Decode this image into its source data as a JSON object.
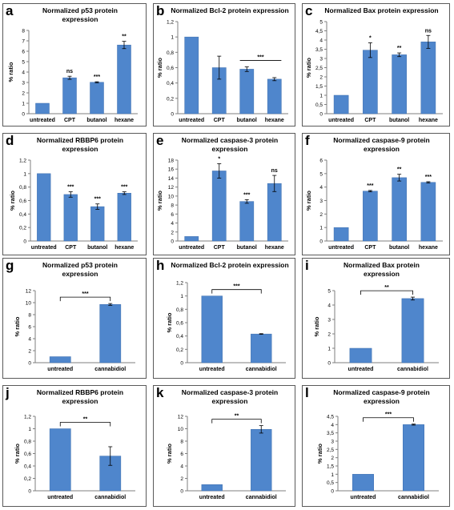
{
  "colors": {
    "bar": "#4f86cc",
    "bar_edge": "#3f6fae",
    "axis": "#7f7f7f",
    "text": "#000000"
  },
  "panels": [
    {
      "label": "a",
      "title": [
        "Normalized p53 protein",
        "expression"
      ]
    },
    {
      "label": "b",
      "title": [
        "Normalized Bcl-2 protein expression"
      ]
    },
    {
      "label": "c",
      "title": [
        "Normalized Bax protein expression"
      ]
    },
    {
      "label": "d",
      "title": [
        "Normalized RBBP6 protein",
        "expression"
      ]
    },
    {
      "label": "e",
      "title": [
        "Normalized caspase-3 protein",
        "expression"
      ]
    },
    {
      "label": "f",
      "title": [
        "Normalized caspase-9 protein",
        "expression"
      ]
    },
    {
      "label": "g",
      "title": [
        "Normalized p53 protein",
        "expression"
      ]
    },
    {
      "label": "h",
      "title": [
        "Normalized Bcl-2 protein expression"
      ]
    },
    {
      "label": "i",
      "title": [
        "Normalized Bax protein",
        "expression"
      ]
    },
    {
      "label": "j",
      "title": [
        "Normalized  RBBP6  protein",
        "expression"
      ]
    },
    {
      "label": "k",
      "title": [
        "Normalized caspase-3 protein",
        "expression"
      ]
    },
    {
      "label": "l",
      "title": [
        "Normalized caspase-9 protein",
        "expression"
      ]
    }
  ],
  "chart_data": [
    {
      "type": "bar",
      "ylabel": "% ratio",
      "categories": [
        "untreated",
        "CPT",
        "butanol",
        "hexane"
      ],
      "values": [
        1,
        3.45,
        3.02,
        6.6
      ],
      "errors": [
        0,
        0.15,
        0.05,
        0.35
      ],
      "annotations": [
        "",
        "ns",
        "***",
        "**"
      ],
      "ylim": [
        0,
        8
      ],
      "yticks": [
        "0",
        "1",
        "2",
        "3",
        "4",
        "5",
        "6",
        "7",
        "8"
      ]
    },
    {
      "type": "bar",
      "ylabel": "% ratio",
      "categories": [
        "untreated",
        "CPT",
        "butanol",
        "hexane"
      ],
      "values": [
        1,
        0.6,
        0.58,
        0.45
      ],
      "errors": [
        0,
        0.15,
        0.03,
        0.02
      ],
      "annotations": [
        "",
        "",
        "",
        ""
      ],
      "bracket": {
        "from": 2,
        "to": 3,
        "label": "***"
      },
      "ylim": [
        0,
        1.2
      ],
      "yticks": [
        "0",
        "0,2",
        "0,4",
        "0,6",
        "0,8",
        "1",
        "1,2"
      ]
    },
    {
      "type": "bar",
      "ylabel": "% ratio",
      "categories": [
        "untreated",
        "CPT",
        "butanol",
        "hexane"
      ],
      "values": [
        1,
        3.45,
        3.2,
        3.9
      ],
      "errors": [
        0,
        0.4,
        0.1,
        0.35
      ],
      "annotations": [
        "",
        "*",
        "**",
        "ns"
      ],
      "ylim": [
        0,
        5
      ],
      "yticks": [
        "0",
        "0,5",
        "1",
        "1,5",
        "2",
        "2,5",
        "3",
        "3,5",
        "4",
        "4,5",
        "5"
      ]
    },
    {
      "type": "bar",
      "ylabel": "% ratio",
      "categories": [
        "untreated",
        "CPT",
        "butanol",
        "hexane"
      ],
      "values": [
        1,
        0.69,
        0.51,
        0.71
      ],
      "errors": [
        0,
        0.04,
        0.04,
        0.02
      ],
      "annotations": [
        "",
        "***",
        "***",
        "***"
      ],
      "ylim": [
        0,
        1.2
      ],
      "yticks": [
        "0",
        "0,2",
        "0,4",
        "0,6",
        "0,8",
        "1",
        "1,2"
      ]
    },
    {
      "type": "bar",
      "ylabel": "% ratio",
      "categories": [
        "untreated",
        "CPT",
        "butanol",
        "hexane"
      ],
      "values": [
        1,
        15.6,
        8.8,
        12.8
      ],
      "errors": [
        0,
        1.6,
        0.4,
        1.8
      ],
      "annotations": [
        "",
        "*",
        "***",
        "ns"
      ],
      "ylim": [
        0,
        18
      ],
      "yticks": [
        "0",
        "2",
        "4",
        "6",
        "8",
        "10",
        "12",
        "14",
        "16",
        "18"
      ]
    },
    {
      "type": "bar",
      "ylabel": "% ratio",
      "categories": [
        "untreated",
        "CPT",
        "butanol",
        "hexane"
      ],
      "values": [
        1,
        3.7,
        4.7,
        4.35
      ],
      "errors": [
        0,
        0.05,
        0.25,
        0.05
      ],
      "annotations": [
        "",
        "***",
        "**",
        "***"
      ],
      "ylim": [
        0,
        6
      ],
      "yticks": [
        "0",
        "1",
        "2",
        "3",
        "4",
        "5",
        "6"
      ]
    },
    {
      "type": "bar",
      "ylabel": "% ratio",
      "categories": [
        "untreated",
        "cannabidiol"
      ],
      "values": [
        1,
        9.7
      ],
      "errors": [
        0,
        0.15
      ],
      "annotations": [
        "",
        ""
      ],
      "bracket": {
        "from": 0,
        "to": 1,
        "label": "***"
      },
      "ylim": [
        0,
        12
      ],
      "yticks": [
        "0",
        "2",
        "4",
        "6",
        "8",
        "10",
        "12"
      ]
    },
    {
      "type": "bar",
      "ylabel": "% ratio",
      "categories": [
        "untreated",
        "cannabidiol"
      ],
      "values": [
        1,
        0.43
      ],
      "errors": [
        0,
        0.005
      ],
      "annotations": [
        "",
        ""
      ],
      "bracket": {
        "from": 0,
        "to": 1,
        "label": "***"
      },
      "ylim": [
        0,
        1.2
      ],
      "yticks": [
        "0",
        "0,2",
        "0,4",
        "0,6",
        "0,8",
        "1",
        "1,2"
      ]
    },
    {
      "type": "bar",
      "ylabel": "% ratio",
      "categories": [
        "untreated",
        "cannabidiol"
      ],
      "values": [
        1,
        4.45
      ],
      "errors": [
        0,
        0.1
      ],
      "annotations": [
        "",
        ""
      ],
      "bracket": {
        "from": 0,
        "to": 1,
        "label": "**"
      },
      "ylim": [
        0,
        5
      ],
      "yticks": [
        "0",
        "1",
        "2",
        "3",
        "4",
        "5"
      ]
    },
    {
      "type": "bar",
      "ylabel": "% ratio",
      "categories": [
        "untreated",
        "cannabidiol"
      ],
      "values": [
        1,
        0.56
      ],
      "errors": [
        0,
        0.15
      ],
      "annotations": [
        "",
        ""
      ],
      "bracket": {
        "from": 0,
        "to": 1,
        "label": "**"
      },
      "ylim": [
        0,
        1.2
      ],
      "yticks": [
        "0",
        "0,2",
        "0,4",
        "0,6",
        "0,8",
        "1",
        "1,2"
      ]
    },
    {
      "type": "bar",
      "ylabel": "% ratio",
      "categories": [
        "untreated",
        "cannabidiol"
      ],
      "values": [
        1,
        9.9
      ],
      "errors": [
        0,
        0.6
      ],
      "annotations": [
        "",
        ""
      ],
      "bracket": {
        "from": 0,
        "to": 1,
        "label": "**"
      },
      "ylim": [
        0,
        12
      ],
      "yticks": [
        "0",
        "2",
        "4",
        "6",
        "8",
        "10",
        "12"
      ]
    },
    {
      "type": "bar",
      "ylabel": "% ratio",
      "categories": [
        "untreated",
        "cannabidiol"
      ],
      "values": [
        1,
        4.0
      ],
      "errors": [
        0,
        0.03
      ],
      "annotations": [
        "",
        ""
      ],
      "bracket": {
        "from": 0,
        "to": 1,
        "label": "***"
      },
      "ylim": [
        0,
        4.5
      ],
      "yticks": [
        "0",
        "0,5",
        "1",
        "1,5",
        "2",
        "2,5",
        "3",
        "3,5",
        "4",
        "4,5"
      ]
    }
  ]
}
